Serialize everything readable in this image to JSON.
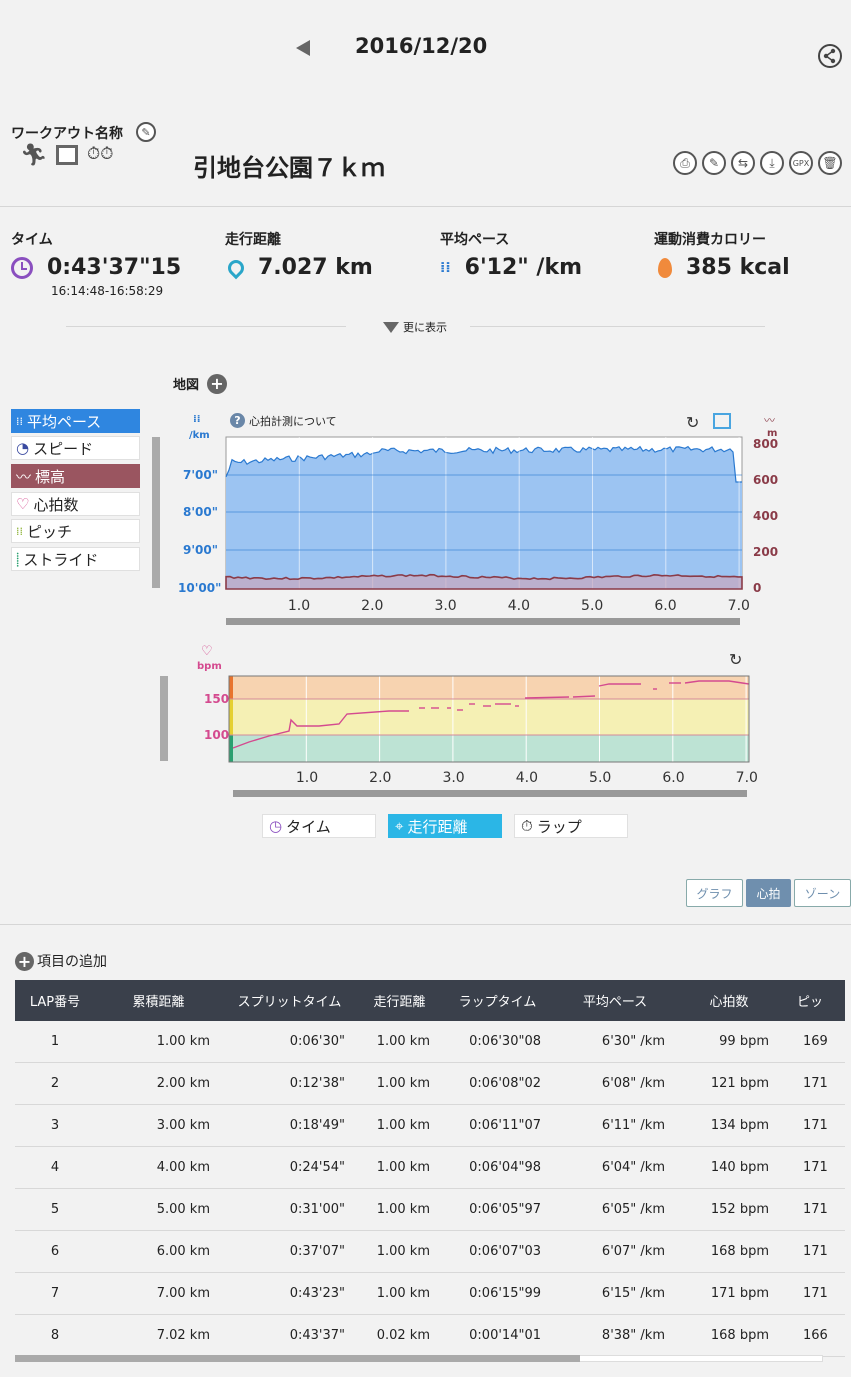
{
  "header": {
    "date": "2016/12/20"
  },
  "workout": {
    "name_label": "ワークアウト名称",
    "title": "引地台公園７ｋｍ"
  },
  "stats": [
    {
      "label": "タイム",
      "value": "0:43'37\"15",
      "sub": "16:14:48-16:58:29",
      "icon": "clock-icon"
    },
    {
      "label": "走行距離",
      "value": "7.027 km",
      "icon": "distance-pin-icon"
    },
    {
      "label": "平均ペース",
      "value": "6'12\" /km",
      "icon": "footsteps-icon"
    },
    {
      "label": "運動消費カロリー",
      "value": "385 kcal",
      "icon": "flame-icon"
    }
  ],
  "more_label": "更に表示",
  "map_label": "地図",
  "hr_note": "心拍計測について",
  "legend": [
    {
      "label": "平均ペース",
      "state": "active-blue"
    },
    {
      "label": "スピード",
      "state": "normal"
    },
    {
      "label": "標高",
      "state": "active-red"
    },
    {
      "label": "心拍数",
      "state": "normal"
    },
    {
      "label": "ピッチ",
      "state": "normal"
    },
    {
      "label": "ストライド",
      "state": "normal"
    }
  ],
  "pace_chart": {
    "left_unit": "/km",
    "left_ticks": [
      "7'00\"",
      "8'00\"",
      "9'00\"",
      "10'00\""
    ],
    "right_unit": "m",
    "right_ticks": [
      "800",
      "600",
      "400",
      "200",
      "0"
    ],
    "x_ticks": [
      "1.0",
      "2.0",
      "3.0",
      "4.0",
      "5.0",
      "6.0",
      "7.0"
    ]
  },
  "hr_chart": {
    "unit": "bpm",
    "y_ticks": [
      "150",
      "100"
    ],
    "x_ticks": [
      "1.0",
      "2.0",
      "3.0",
      "4.0",
      "5.0",
      "6.0",
      "7.0"
    ]
  },
  "x_axis_buttons": [
    "タイム",
    "走行距離",
    "ラップ"
  ],
  "view_tabs": [
    "グラフ",
    "心拍",
    "ゾーン"
  ],
  "add_item_label": "項目の追加",
  "colors": {
    "pace_fill": "#9cc4f2",
    "pace_line": "#2a79d0",
    "elev": "#8a3b48",
    "hr_line": "#d44a8f",
    "zone_high": "#f7d3b0",
    "zone_mid": "#f5f0b4",
    "zone_low": "#bde3d4",
    "table_header": "#3a404b",
    "active_tab": "#6f8fae"
  },
  "table": {
    "headers": [
      "LAP番号",
      "累積距離",
      "スプリットタイム",
      "走行距離",
      "ラップタイム",
      "平均ペース",
      "心拍数",
      "ピッ"
    ],
    "rows": [
      [
        "1",
        "1.00 km",
        "0:06'30\"",
        "1.00 km",
        "0:06'30\"08",
        "6'30\" /km",
        "99 bpm",
        "169"
      ],
      [
        "2",
        "2.00 km",
        "0:12'38\"",
        "1.00 km",
        "0:06'08\"02",
        "6'08\" /km",
        "121 bpm",
        "171"
      ],
      [
        "3",
        "3.00 km",
        "0:18'49\"",
        "1.00 km",
        "0:06'11\"07",
        "6'11\" /km",
        "134 bpm",
        "171"
      ],
      [
        "4",
        "4.00 km",
        "0:24'54\"",
        "1.00 km",
        "0:06'04\"98",
        "6'04\" /km",
        "140 bpm",
        "171"
      ],
      [
        "5",
        "5.00 km",
        "0:31'00\"",
        "1.00 km",
        "0:06'05\"97",
        "6'05\" /km",
        "152 bpm",
        "171"
      ],
      [
        "6",
        "6.00 km",
        "0:37'07\"",
        "1.00 km",
        "0:06'07\"03",
        "6'07\" /km",
        "168 bpm",
        "171"
      ],
      [
        "7",
        "7.00 km",
        "0:43'23\"",
        "1.00 km",
        "0:06'15\"99",
        "6'15\" /km",
        "171 bpm",
        "171"
      ],
      [
        "8",
        "7.02 km",
        "0:43'37\"",
        "0.02 km",
        "0:00'14\"01",
        "8'38\" /km",
        "168 bpm",
        "166"
      ]
    ]
  }
}
